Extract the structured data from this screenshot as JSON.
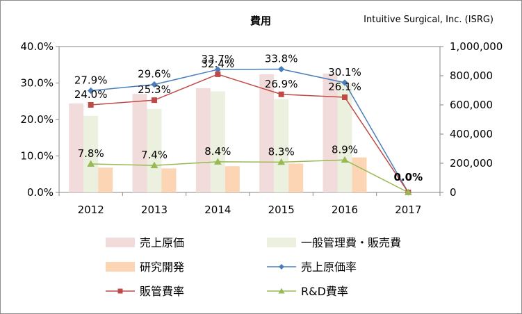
{
  "chart_data": {
    "type": "bar+line",
    "title": "費用",
    "subtitle": "Intuitive Surgical, Inc. (ISRG)",
    "categories": [
      "2012",
      "2013",
      "2014",
      "2015",
      "2016",
      "2017"
    ],
    "bar_series": [
      {
        "name": "売上原価",
        "color": "#f2dcdb",
        "values": [
          610000,
          675000,
          715000,
          810000,
          815000,
          0
        ]
      },
      {
        "name": "一般管理費・販売費",
        "color": "#ebf1de",
        "values": [
          525000,
          572000,
          693000,
          640000,
          745000,
          0
        ]
      },
      {
        "name": "研究開発",
        "color": "#fcd5b5",
        "values": [
          170000,
          165000,
          180000,
          198000,
          240000,
          0
        ]
      }
    ],
    "line_series": [
      {
        "name": "売上原価率",
        "color": "#4a7ebb",
        "marker": "diamond",
        "values": [
          27.9,
          29.6,
          33.7,
          33.8,
          30.1,
          0.0
        ],
        "labels": [
          "27.9%",
          "29.6%",
          "33.7%",
          "33.8%",
          "30.1%",
          ""
        ]
      },
      {
        "name": "販管費率",
        "color": "#be4b48",
        "marker": "square",
        "values": [
          24.0,
          25.3,
          32.4,
          26.9,
          26.1,
          0.0
        ],
        "labels": [
          "24.0%",
          "25.3%",
          "32.4%",
          "26.9%",
          "26.1%",
          ""
        ]
      },
      {
        "name": "R&D費率",
        "color": "#98b954",
        "marker": "triangle",
        "values": [
          7.8,
          7.4,
          8.4,
          8.3,
          8.9,
          0.0
        ],
        "labels": [
          "7.8%",
          "7.4%",
          "8.4%",
          "8.3%",
          "8.9%",
          ""
        ]
      }
    ],
    "zero_label": "0.0%",
    "left_axis": {
      "min": 0,
      "max": 40,
      "ticks": [
        "0.0%",
        "10.0%",
        "20.0%",
        "30.0%",
        "40.0%"
      ]
    },
    "right_axis": {
      "min": 0,
      "max": 1000000,
      "ticks": [
        "0",
        "200,000",
        "400,000",
        "600,000",
        "800,000",
        "1,000,000"
      ]
    },
    "legend_position": "bottom"
  }
}
